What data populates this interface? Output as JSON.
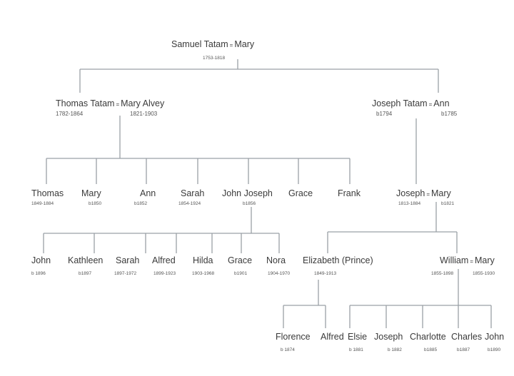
{
  "gen1": {
    "husband": "Samuel Tatam",
    "wife": "Mary",
    "sep": "=",
    "dates": "1753-1818"
  },
  "gen2": [
    {
      "husband": "Thomas Tatam",
      "wife": "Mary Alvey",
      "sep": "=",
      "husband_dates": "1782-1864",
      "wife_dates": "1821-1903"
    },
    {
      "husband": "Joseph Tatam",
      "wife": "Ann",
      "sep": "=",
      "husband_dates": "b1794",
      "wife_dates": "b1785"
    }
  ],
  "thomas_children": [
    {
      "name": "Thomas",
      "dates": "1849-1884"
    },
    {
      "name": "Mary",
      "dates": "b1850"
    },
    {
      "name": "Ann",
      "dates": "b1852"
    },
    {
      "name": "Sarah",
      "dates": "1854-1924"
    },
    {
      "name": "John Joseph",
      "dates": "b1856"
    },
    {
      "name": "Grace",
      "dates": ""
    },
    {
      "name": "Frank",
      "dates": ""
    }
  ],
  "joseph_couple": {
    "husband": "Joseph",
    "wife": "Mary",
    "sep": "=",
    "husband_dates": "1813-1884",
    "wife_dates": "b1821"
  },
  "john_joseph_children": [
    {
      "name": "John",
      "dates": "b 1896"
    },
    {
      "name": "Kathleen",
      "dates": "b1897"
    },
    {
      "name": "Sarah",
      "dates": "1897-1972"
    },
    {
      "name": "Alfred",
      "dates": "1899-1923"
    },
    {
      "name": "Hilda",
      "dates": "1903-1968"
    },
    {
      "name": "Grace",
      "dates": "b1901"
    },
    {
      "name": "Nora",
      "dates": "1904-1970"
    }
  ],
  "elizabeth": {
    "name": "Elizabeth (Prince)",
    "dates": "1849-1913"
  },
  "william_couple": {
    "husband": "William",
    "wife": "Mary",
    "sep": "=",
    "husband_dates": "1855-1898",
    "wife_dates": "1855-1930"
  },
  "elizabeth_children": [
    {
      "name": "Florence",
      "dates": "b 1874"
    },
    {
      "name": "Alfred",
      "dates": ""
    }
  ],
  "william_children": [
    {
      "name": "Elsie",
      "dates": "b 1881"
    },
    {
      "name": "Joseph",
      "dates": "b 1882"
    },
    {
      "name": "Charlotte",
      "dates": "b1885"
    },
    {
      "name": "Charles",
      "dates": "b1887"
    },
    {
      "name": "John",
      "dates": "b1890"
    }
  ]
}
